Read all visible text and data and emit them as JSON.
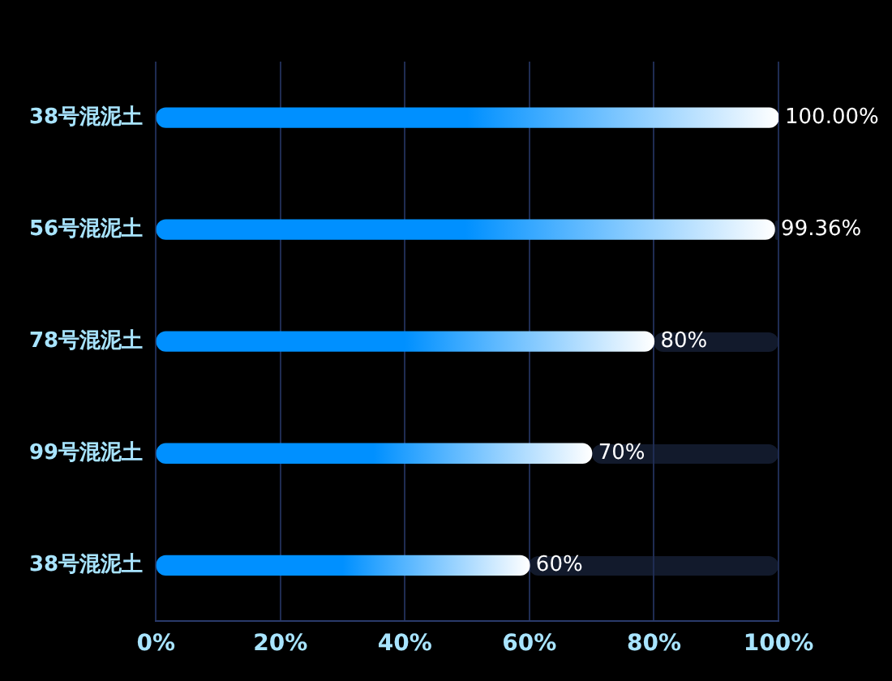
{
  "chart_data": {
    "type": "bar",
    "orientation": "horizontal",
    "categories": [
      "38号混泥土",
      "56号混泥土",
      "78号混泥土",
      "99号混泥土",
      "38号混泥土"
    ],
    "values": [
      100,
      99.36,
      80,
      70,
      60
    ],
    "value_labels": [
      "100.00%",
      "99.36%",
      "80%",
      "70%",
      "60%"
    ],
    "color": "#0090ff",
    "xlim": [
      0,
      100
    ],
    "xticks": [
      {
        "value": 0,
        "label": "0%"
      },
      {
        "value": 20,
        "label": "20%"
      },
      {
        "value": 40,
        "label": "40%"
      },
      {
        "value": 60,
        "label": "60%"
      },
      {
        "value": 80,
        "label": "80%"
      },
      {
        "value": 100,
        "label": "100%"
      }
    ],
    "grid": "x",
    "legend": false
  }
}
